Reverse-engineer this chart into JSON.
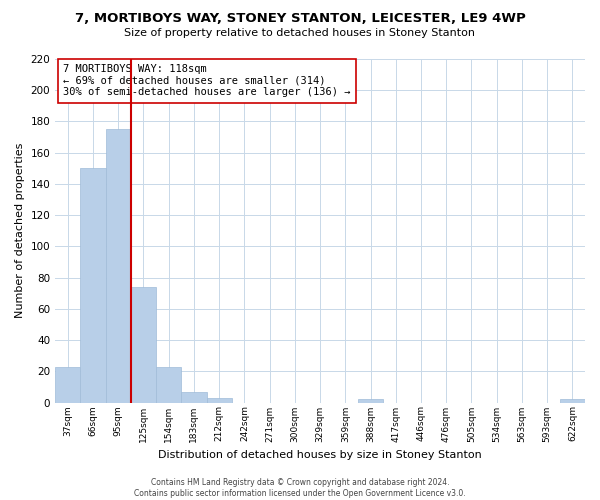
{
  "title": "7, MORTIBOYS WAY, STONEY STANTON, LEICESTER, LE9 4WP",
  "subtitle": "Size of property relative to detached houses in Stoney Stanton",
  "xlabel": "Distribution of detached houses by size in Stoney Stanton",
  "ylabel": "Number of detached properties",
  "bar_labels": [
    "37sqm",
    "66sqm",
    "95sqm",
    "125sqm",
    "154sqm",
    "183sqm",
    "212sqm",
    "242sqm",
    "271sqm",
    "300sqm",
    "329sqm",
    "359sqm",
    "388sqm",
    "417sqm",
    "446sqm",
    "476sqm",
    "505sqm",
    "534sqm",
    "563sqm",
    "593sqm",
    "622sqm"
  ],
  "bar_values": [
    23,
    150,
    175,
    74,
    23,
    7,
    3,
    0,
    0,
    0,
    0,
    0,
    2,
    0,
    0,
    0,
    0,
    0,
    0,
    0,
    2
  ],
  "bar_color": "#b8cfe8",
  "bar_edge_color": "#a0bcd8",
  "vline_color": "#cc0000",
  "annotation_text": "7 MORTIBOYS WAY: 118sqm\n← 69% of detached houses are smaller (314)\n30% of semi-detached houses are larger (136) →",
  "annotation_box_color": "white",
  "annotation_box_edge_color": "#cc0000",
  "ylim": [
    0,
    220
  ],
  "yticks": [
    0,
    20,
    40,
    60,
    80,
    100,
    120,
    140,
    160,
    180,
    200,
    220
  ],
  "footer_line1": "Contains HM Land Registry data © Crown copyright and database right 2024.",
  "footer_line2": "Contains public sector information licensed under the Open Government Licence v3.0.",
  "background_color": "#ffffff",
  "grid_color": "#c8d8e8"
}
